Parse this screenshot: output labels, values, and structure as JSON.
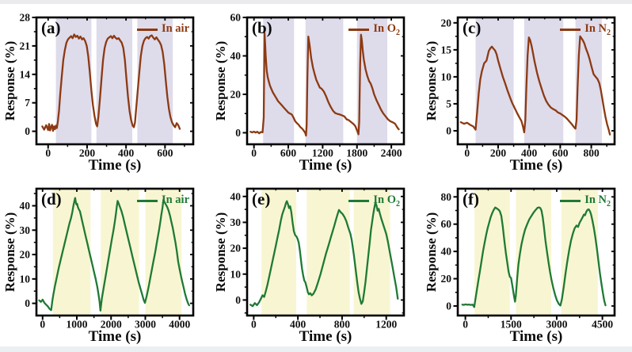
{
  "figure_title": "",
  "chart_data": [
    {
      "type": "line",
      "panel_label": "(a)",
      "legend_text": "In air",
      "legend_sub": "",
      "line_color": "#8C3A12",
      "band_color": "#DEDBEB",
      "xlabel": "Time (s)",
      "ylabel": "Response (%)",
      "xlim": [
        -60,
        745
      ],
      "ylim": [
        -3.2,
        28
      ],
      "xticks": [
        0,
        200,
        400,
        600
      ],
      "yticks": [
        0,
        7,
        14,
        21,
        28
      ],
      "bands": [
        [
          40,
          222
        ],
        [
          248,
          432
        ],
        [
          458,
          640
        ]
      ],
      "x": [
        -30,
        -20,
        -10,
        0,
        5,
        10,
        15,
        20,
        25,
        30,
        35,
        40,
        45,
        50,
        56,
        62,
        70,
        78,
        86,
        94,
        102,
        110,
        118,
        126,
        134,
        142,
        150,
        158,
        166,
        174,
        182,
        190,
        198,
        206,
        214,
        222,
        230,
        238,
        246,
        252,
        258,
        266,
        274,
        282,
        290,
        298,
        306,
        314,
        322,
        330,
        338,
        346,
        354,
        362,
        370,
        378,
        386,
        394,
        402,
        410,
        418,
        426,
        434,
        440,
        446,
        452,
        460,
        468,
        476,
        484,
        492,
        500,
        508,
        516,
        524,
        532,
        540,
        548,
        556,
        564,
        572,
        580,
        588,
        596,
        604,
        612,
        620,
        628,
        636,
        644,
        652,
        660,
        668,
        676
      ],
      "y": [
        1.2,
        0.4,
        1.5,
        0.3,
        1.8,
        0.2,
        1.0,
        1.6,
        0.1,
        1.2,
        0.5,
        1.4,
        0.8,
        2.5,
        5,
        9,
        13.5,
        17.5,
        20,
        21.8,
        22.6,
        23,
        23.4,
        22.9,
        23.8,
        23.2,
        23.5,
        22.8,
        23.3,
        22.6,
        22.9,
        22.2,
        21.0,
        18.5,
        14.5,
        10,
        6.5,
        3.8,
        1.8,
        1.2,
        3.5,
        8,
        13,
        17.5,
        20.5,
        22,
        22.8,
        23.1,
        23.4,
        22.9,
        23.5,
        23.0,
        22.7,
        22.9,
        22.3,
        21.8,
        20.5,
        17.5,
        13,
        8.5,
        5,
        2.8,
        1.4,
        1.0,
        2.2,
        5.5,
        10,
        14.5,
        18.5,
        21,
        22.3,
        22.9,
        23.2,
        22.8,
        23.4,
        23.6,
        23.0,
        22.6,
        23.1,
        22.5,
        22.0,
        21.2,
        19.5,
        16.5,
        12.5,
        8.5,
        5.5,
        3.5,
        2.2,
        1.5,
        1.0,
        2.0,
        1.5,
        0.6
      ]
    },
    {
      "type": "line",
      "panel_label": "(b)",
      "legend_text": "In O",
      "legend_sub": "2",
      "line_color": "#8C3A12",
      "band_color": "#DEDBEB",
      "xlabel": "Time (s)",
      "ylabel": "Response (%)",
      "xlim": [
        -120,
        2620
      ],
      "ylim": [
        -6,
        60
      ],
      "xticks": [
        0,
        600,
        1200,
        1800,
        2400
      ],
      "yticks": [
        0,
        20,
        40,
        60
      ],
      "bands": [
        [
          160,
          700
        ],
        [
          900,
          1560
        ],
        [
          1800,
          2330
        ]
      ],
      "x": [
        -60,
        -30,
        0,
        30,
        60,
        90,
        120,
        150,
        170,
        185,
        195,
        205,
        215,
        225,
        240,
        260,
        280,
        300,
        330,
        360,
        390,
        420,
        450,
        480,
        510,
        540,
        570,
        600,
        630,
        660,
        690,
        720,
        750,
        780,
        810,
        840,
        860,
        875,
        890,
        900,
        910,
        920,
        935,
        950,
        970,
        1000,
        1030,
        1060,
        1090,
        1120,
        1150,
        1180,
        1220,
        1260,
        1300,
        1340,
        1380,
        1420,
        1460,
        1500,
        1540,
        1580,
        1620,
        1660,
        1700,
        1740,
        1770,
        1790,
        1810,
        1825,
        1840,
        1855,
        1870,
        1885,
        1900,
        1920,
        1950,
        1980,
        2010,
        2040,
        2070,
        2100,
        2140,
        2180,
        2220,
        2260,
        2300,
        2340,
        2380,
        2420,
        2450,
        2470,
        2490,
        2510,
        2530
      ],
      "y": [
        0.5,
        0.2,
        0.6,
        0.1,
        0.5,
        -0.3,
        0.4,
        0.2,
        8,
        52,
        46,
        40,
        35.5,
        32,
        29,
        26.5,
        24.5,
        23,
        21,
        19.5,
        18,
        16.5,
        15.5,
        14.5,
        13.5,
        12.5,
        11.5,
        10.5,
        10,
        9.5,
        8,
        6,
        5,
        4.2,
        3,
        2.2,
        1.5,
        0.8,
        0.3,
        -0.5,
        -1.5,
        4,
        30,
        50,
        46,
        39,
        34,
        30.5,
        27.5,
        25.5,
        23.5,
        23,
        21.5,
        19,
        16,
        13.5,
        11.5,
        10.2,
        9.8,
        9.5,
        9,
        8.5,
        7,
        6.5,
        5.5,
        4.5,
        3.5,
        2,
        0.5,
        -0.8,
        6,
        35,
        51,
        48,
        43,
        38,
        33,
        29.5,
        27,
        25.5,
        23,
        20,
        17,
        14.5,
        12,
        10,
        8.5,
        7,
        6,
        5.5,
        5,
        4.5,
        3.5,
        2.5,
        1.8
      ]
    },
    {
      "type": "line",
      "panel_label": "(c)",
      "legend_text": "In N",
      "legend_sub": "2",
      "line_color": "#8C3A12",
      "band_color": "#DEDBEB",
      "xlabel": "Time (s)",
      "ylabel": "Response (%)",
      "xlim": [
        -60,
        950
      ],
      "ylim": [
        -2.5,
        21
      ],
      "xticks": [
        0,
        200,
        400,
        600,
        800
      ],
      "yticks": [
        0,
        5,
        10,
        15,
        20
      ],
      "bands": [
        [
          55,
          300
        ],
        [
          368,
          620
        ],
        [
          698,
          868
        ]
      ],
      "x": [
        -40,
        -20,
        0,
        20,
        40,
        55,
        65,
        75,
        85,
        95,
        110,
        125,
        140,
        150,
        160,
        170,
        180,
        190,
        200,
        215,
        230,
        245,
        260,
        275,
        290,
        305,
        320,
        335,
        350,
        360,
        368,
        375,
        382,
        390,
        398,
        406,
        415,
        425,
        435,
        450,
        465,
        480,
        495,
        510,
        525,
        540,
        555,
        570,
        585,
        600,
        615,
        630,
        645,
        660,
        675,
        688,
        698,
        705,
        712,
        720,
        728,
        736,
        745,
        755,
        765,
        778,
        790,
        802,
        815,
        828,
        840,
        852,
        862,
        872,
        882,
        892,
        902,
        912,
        920
      ],
      "y": [
        1.6,
        1.3,
        1.5,
        1.1,
        0.8,
        0.2,
        3.5,
        7,
        9.5,
        11,
        12.5,
        13,
        14.8,
        15.3,
        15.6,
        15.2,
        14.9,
        14.2,
        13,
        11.5,
        10,
        8.8,
        7.5,
        6.3,
        5.2,
        4.3,
        3.4,
        2.6,
        1.8,
        0.8,
        -0.3,
        2,
        8,
        14,
        17.3,
        16.8,
        15.8,
        14.3,
        12.8,
        10.8,
        9.2,
        7.8,
        6.5,
        5.5,
        4.8,
        4.3,
        4.0,
        3.8,
        3.4,
        3.2,
        2.9,
        2.6,
        2.2,
        1.7,
        1.2,
        0.7,
        0.4,
        2,
        8,
        14,
        17.5,
        17.2,
        16.8,
        16.2,
        15.3,
        14.3,
        13.2,
        11.8,
        10.5,
        10.0,
        9.6,
        8.8,
        7.5,
        5.8,
        4.0,
        2.5,
        1.2,
        0.2,
        -0.7
      ]
    },
    {
      "type": "line",
      "panel_label": "(d)",
      "legend_text": "In air",
      "legend_sub": "",
      "line_color": "#1F7A35",
      "band_color": "#F8F6D2",
      "xlabel": "Time (s)",
      "ylabel": "Response (%)",
      "xlim": [
        -180,
        4400
      ],
      "ylim": [
        -5,
        47
      ],
      "xticks": [
        0,
        1000,
        2000,
        3000,
        4000
      ],
      "yticks": [
        0,
        10,
        20,
        30,
        40
      ],
      "bands": [
        [
          300,
          1400
        ],
        [
          1700,
          2820
        ],
        [
          3000,
          4060
        ]
      ],
      "x": [
        -100,
        -50,
        0,
        50,
        100,
        150,
        200,
        250,
        290,
        320,
        360,
        420,
        480,
        540,
        600,
        660,
        720,
        780,
        830,
        870,
        900,
        930,
        950,
        970,
        990,
        1010,
        1030,
        1060,
        1090,
        1120,
        1160,
        1200,
        1250,
        1300,
        1350,
        1400,
        1450,
        1500,
        1550,
        1600,
        1640,
        1665,
        1690,
        1730,
        1780,
        1840,
        1900,
        1960,
        2020,
        2070,
        2110,
        2140,
        2165,
        2190,
        2220,
        2260,
        2300,
        2350,
        2400,
        2450,
        2500,
        2560,
        2620,
        2680,
        2740,
        2800,
        2860,
        2910,
        2950,
        2990,
        3040,
        3100,
        3160,
        3220,
        3290,
        3350,
        3400,
        3440,
        3470,
        3500,
        3530,
        3560,
        3600,
        3640,
        3680,
        3720,
        3760,
        3800,
        3840,
        3880,
        3920,
        3960,
        4010,
        4060,
        4110,
        4160,
        4210,
        4250,
        4280
      ],
      "y": [
        1.2,
        0.6,
        1.5,
        0.3,
        -0.5,
        -1.2,
        -2.2,
        -2.8,
        1.5,
        4,
        7,
        11,
        15,
        18.5,
        22,
        25.5,
        29,
        32.5,
        35,
        37.5,
        40,
        42,
        43.2,
        41.5,
        40.5,
        40.8,
        39.5,
        38.5,
        37.8,
        36,
        33.5,
        31,
        28,
        25,
        22,
        19,
        16,
        13,
        10,
        6.5,
        3,
        0.5,
        -3,
        2,
        6,
        11,
        16,
        21,
        26,
        30,
        33.5,
        36.5,
        39.5,
        42,
        41,
        39.5,
        38,
        35.5,
        32.5,
        29.5,
        26.5,
        23,
        19.5,
        16,
        12.5,
        9,
        6,
        3.5,
        1.5,
        0.2,
        3,
        7,
        11.5,
        16,
        21,
        26,
        30,
        33.5,
        36.5,
        39,
        42.5,
        41.5,
        40.5,
        39.5,
        38,
        36,
        33.5,
        31,
        28,
        25,
        21.5,
        17,
        13.5,
        10,
        7,
        4,
        1.5,
        0,
        -0.8
      ]
    },
    {
      "type": "line",
      "panel_label": "(e)",
      "legend_text": "In O",
      "legend_sub": "2",
      "line_color": "#1F7A35",
      "band_color": "#F8F6D2",
      "xlabel": "Time (s)",
      "ylabel": "Response (%)",
      "xlim": [
        -60,
        1360
      ],
      "ylim": [
        -6,
        43
      ],
      "xticks": [
        0,
        400,
        800,
        1200
      ],
      "yticks": [
        0,
        10,
        20,
        30,
        40
      ],
      "bands": [
        [
          70,
          385
        ],
        [
          480,
          870
        ],
        [
          905,
          1235
        ]
      ],
      "x": [
        -30,
        -10,
        10,
        30,
        50,
        65,
        80,
        95,
        110,
        125,
        140,
        155,
        170,
        185,
        200,
        215,
        230,
        245,
        258,
        270,
        282,
        292,
        300,
        310,
        320,
        330,
        340,
        352,
        364,
        376,
        388,
        398,
        408,
        418,
        428,
        438,
        448,
        458,
        468,
        478,
        490,
        500,
        512,
        525,
        540,
        560,
        580,
        605,
        630,
        655,
        680,
        700,
        718,
        732,
        745,
        758,
        772,
        788,
        805,
        822,
        838,
        852,
        864,
        876,
        888,
        898,
        908,
        918,
        928,
        938,
        950,
        962,
        975,
        988,
        1000,
        1012,
        1022,
        1032,
        1042,
        1052,
        1062,
        1072,
        1082,
        1092,
        1102,
        1112,
        1122,
        1132,
        1142,
        1155,
        1170,
        1185,
        1200,
        1215,
        1230,
        1245,
        1260,
        1275,
        1290,
        1305
      ],
      "y": [
        -1.8,
        -2.4,
        -1.2,
        -2.0,
        -0.8,
        0.5,
        1.8,
        1.2,
        3.5,
        6,
        9,
        12,
        15,
        18,
        21,
        24,
        27,
        30.5,
        33,
        34.5,
        36,
        37.5,
        38.2,
        37,
        35.5,
        36.2,
        34,
        30,
        26.5,
        25,
        24.5,
        23.5,
        22,
        19,
        15.5,
        12,
        9.5,
        7.5,
        6.8,
        5.2,
        3.0,
        2.2,
        2.6,
        1.8,
        2.4,
        4,
        6.5,
        10,
        14,
        18,
        21.5,
        24.5,
        27,
        29,
        31,
        33,
        34.8,
        33.9,
        33.2,
        32,
        30.5,
        28.5,
        27,
        25.5,
        23,
        20,
        17,
        13.5,
        10,
        6.5,
        3,
        0.5,
        -1.5,
        -0.5,
        3,
        7,
        11,
        15,
        19,
        23,
        27,
        30,
        33,
        35.5,
        37.6,
        36.5,
        34.5,
        35.2,
        33.4,
        31.5,
        29.5,
        27.5,
        25.5,
        22.5,
        19,
        15.5,
        12,
        8.5,
        5,
        0.5
      ]
    },
    {
      "type": "line",
      "panel_label": "(f)",
      "legend_text": "In N",
      "legend_sub": "2",
      "line_color": "#1F7A35",
      "band_color": "#F8F6D2",
      "xlabel": "Time (s)",
      "ylabel": "Response (%)",
      "xlim": [
        -250,
        4900
      ],
      "ylim": [
        -7,
        86
      ],
      "xticks": [
        0,
        1500,
        3000,
        4500
      ],
      "yticks": [
        0,
        20,
        40,
        60,
        80
      ],
      "bands": [
        [
          300,
          1460
        ],
        [
          1660,
          2820
        ],
        [
          3150,
          4350
        ]
      ],
      "x": [
        -100,
        -50,
        0,
        60,
        120,
        180,
        240,
        290,
        330,
        380,
        430,
        480,
        530,
        580,
        630,
        680,
        730,
        780,
        830,
        880,
        930,
        980,
        1030,
        1080,
        1130,
        1180,
        1230,
        1280,
        1330,
        1380,
        1420,
        1460,
        1500,
        1550,
        1600,
        1630,
        1660,
        1700,
        1740,
        1790,
        1840,
        1900,
        1960,
        2030,
        2100,
        2170,
        2240,
        2310,
        2370,
        2420,
        2460,
        2500,
        2540,
        2580,
        2630,
        2680,
        2730,
        2780,
        2830,
        2890,
        2950,
        3010,
        3070,
        3120,
        3170,
        3230,
        3290,
        3350,
        3410,
        3470,
        3530,
        3590,
        3650,
        3700,
        3750,
        3800,
        3850,
        3890,
        3930,
        3970,
        4010,
        4050,
        4090,
        4130,
        4170,
        4220,
        4270,
        4320,
        4370,
        4420,
        4470,
        4520,
        4560,
        4600
      ],
      "y": [
        1.0,
        0.8,
        1.2,
        0.9,
        1.1,
        0.8,
        1.0,
        -0.8,
        5,
        12,
        19,
        26,
        33,
        40,
        46,
        52,
        57,
        61,
        65,
        68,
        70.5,
        72.2,
        71.5,
        70.8,
        69.5,
        66,
        58,
        48,
        39,
        31,
        25,
        21.5,
        20.5,
        14,
        7,
        3.2,
        8,
        20,
        30,
        38,
        45,
        51,
        56,
        60,
        63.5,
        66,
        68.5,
        70.5,
        72,
        72.3,
        71.8,
        70,
        65,
        58,
        48,
        40,
        32,
        25,
        19,
        13,
        8,
        4,
        1.5,
        0.3,
        5,
        14,
        24,
        33,
        41,
        48,
        53,
        57,
        59,
        58,
        61,
        63,
        65,
        67,
        66.5,
        69,
        70.5,
        70.9,
        69.5,
        67,
        63,
        57,
        50,
        42,
        33,
        24,
        16,
        9,
        4,
        0.5
      ]
    }
  ]
}
